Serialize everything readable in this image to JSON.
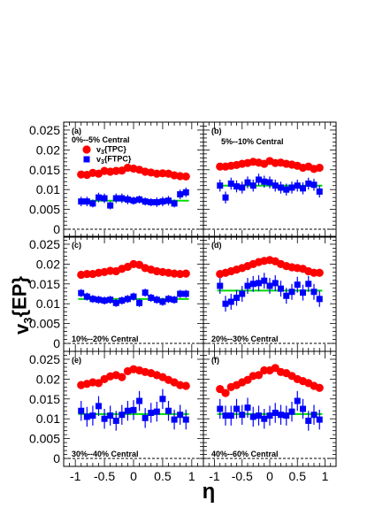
{
  "chart_data": {
    "type": "scatter",
    "ylabel": "v3{EP}",
    "xlabel": "η",
    "xlim": [
      -1.2,
      1.2
    ],
    "x_ticks": [
      "-1",
      "-0.5",
      "0",
      "0.5",
      "1"
    ],
    "rows": [
      {
        "ylim": [
          -0.002,
          0.027
        ],
        "y_ticks": [
          "0",
          "0.005",
          "0.01",
          "0.015",
          "0.02",
          "0.025"
        ]
      },
      {
        "ylim": [
          -0.002,
          0.027
        ],
        "y_ticks": [
          "0",
          "0.005",
          "0.01",
          "0.015",
          "0.02",
          "0.025"
        ]
      },
      {
        "ylim": [
          -0.002,
          0.027
        ],
        "y_ticks": [
          "0",
          "0.005",
          "0.01",
          "0.015",
          "0.02",
          "0.025"
        ]
      }
    ],
    "legend": {
      "placement": "top-left of panel (a)",
      "entries": [
        {
          "label": "v3{TPC}",
          "marker": "circle",
          "color": "#ff0000"
        },
        {
          "label": "v3{FTPC}",
          "marker": "square",
          "color": "#0000ff"
        }
      ]
    },
    "x": [
      -0.9,
      -0.8,
      -0.7,
      -0.6,
      -0.5,
      -0.4,
      -0.3,
      -0.2,
      -0.1,
      0.0,
      0.1,
      0.2,
      0.3,
      0.4,
      0.5,
      0.6,
      0.7,
      0.8,
      0.9
    ],
    "panels": [
      {
        "letter": "(a)",
        "label": "0%--5% Central",
        "row": 0,
        "col": 0,
        "tpc": [
          0.0138,
          0.0137,
          0.0142,
          0.014,
          0.0147,
          0.0145,
          0.0147,
          0.0148,
          0.0155,
          0.0153,
          0.015,
          0.0145,
          0.0143,
          0.014,
          0.0141,
          0.014,
          0.0136,
          0.0134,
          0.0133
        ],
        "ftpc": [
          0.007,
          0.007,
          0.0065,
          0.008,
          0.0078,
          0.006,
          0.0078,
          0.0078,
          0.0075,
          0.0072,
          0.0075,
          0.007,
          0.0068,
          0.0068,
          0.007,
          0.0072,
          0.0065,
          0.0088,
          0.0093
        ],
        "ftpc_err": [
          0.0012,
          0.0012,
          0.001,
          0.0012,
          0.0012,
          0.001,
          0.0012,
          0.0012,
          0.0012,
          0.001,
          0.001,
          0.001,
          0.001,
          0.0012,
          0.0012,
          0.0012,
          0.001,
          0.0012,
          0.0012
        ],
        "fit": 0.0072
      },
      {
        "letter": "(b)",
        "label": "5%--10% Central",
        "row": 0,
        "col": 1,
        "tpc": [
          0.0158,
          0.0158,
          0.016,
          0.0162,
          0.0165,
          0.0167,
          0.017,
          0.0168,
          0.0165,
          0.0172,
          0.0167,
          0.0168,
          0.0165,
          0.0163,
          0.016,
          0.0155,
          0.0158,
          0.0152,
          0.0155
        ],
        "ftpc": [
          0.011,
          0.008,
          0.0115,
          0.0108,
          0.0105,
          0.0118,
          0.011,
          0.0125,
          0.012,
          0.0118,
          0.011,
          0.0105,
          0.01,
          0.0105,
          0.011,
          0.0103,
          0.0115,
          0.0112,
          0.0095
        ],
        "ftpc_err": [
          0.0015,
          0.0015,
          0.0015,
          0.0015,
          0.0015,
          0.0015,
          0.0015,
          0.0015,
          0.0015,
          0.0015,
          0.0015,
          0.0015,
          0.0015,
          0.0015,
          0.0015,
          0.0015,
          0.0015,
          0.0015,
          0.0015
        ],
        "fit": 0.011
      },
      {
        "letter": "(c)",
        "label": "10%--20% Central",
        "row": 1,
        "col": 0,
        "tpc": [
          0.0173,
          0.0175,
          0.0175,
          0.0178,
          0.018,
          0.0183,
          0.0182,
          0.0188,
          0.0193,
          0.02,
          0.0198,
          0.019,
          0.0186,
          0.0182,
          0.018,
          0.0178,
          0.0176,
          0.0175,
          0.0176
        ],
        "ftpc": [
          0.0127,
          0.0118,
          0.0112,
          0.011,
          0.0108,
          0.011,
          0.0102,
          0.0108,
          0.0112,
          0.0118,
          0.0102,
          0.0128,
          0.0115,
          0.011,
          0.0105,
          0.0112,
          0.011,
          0.0125,
          0.0125
        ],
        "ftpc_err": [
          0.001,
          0.001,
          0.001,
          0.001,
          0.001,
          0.001,
          0.001,
          0.001,
          0.001,
          0.001,
          0.001,
          0.001,
          0.001,
          0.001,
          0.001,
          0.001,
          0.001,
          0.001,
          0.001
        ],
        "fit": 0.0112
      },
      {
        "letter": "(d)",
        "label": "20%--30% Central",
        "row": 1,
        "col": 1,
        "tpc": [
          0.0175,
          0.0178,
          0.0182,
          0.0186,
          0.019,
          0.0195,
          0.02,
          0.0205,
          0.0208,
          0.021,
          0.0207,
          0.02,
          0.0195,
          0.0192,
          0.019,
          0.0188,
          0.0182,
          0.0178,
          0.0178
        ],
        "ftpc": [
          0.0145,
          0.01,
          0.0105,
          0.0115,
          0.0125,
          0.0145,
          0.015,
          0.0152,
          0.0158,
          0.0145,
          0.0152,
          0.0138,
          0.012,
          0.013,
          0.0148,
          0.0128,
          0.015,
          0.013,
          0.0112
        ],
        "ftpc_err": [
          0.002,
          0.002,
          0.002,
          0.002,
          0.002,
          0.002,
          0.002,
          0.002,
          0.002,
          0.002,
          0.002,
          0.002,
          0.002,
          0.002,
          0.002,
          0.002,
          0.002,
          0.002,
          0.002
        ],
        "fit": 0.0133
      },
      {
        "letter": "(e)",
        "label": "30%--40% Central",
        "row": 2,
        "col": 0,
        "tpc": [
          0.0185,
          0.0188,
          0.0192,
          0.019,
          0.02,
          0.0207,
          0.021,
          0.0205,
          0.022,
          0.0225,
          0.0222,
          0.0218,
          0.0215,
          0.021,
          0.0205,
          0.0198,
          0.0192,
          0.0185,
          0.0183
        ],
        "ftpc": [
          0.012,
          0.0105,
          0.0108,
          0.0132,
          0.01,
          0.0108,
          0.0095,
          0.011,
          0.012,
          0.0122,
          0.0145,
          0.0102,
          0.0115,
          0.0118,
          0.015,
          0.012,
          0.0098,
          0.011,
          0.0098
        ],
        "ftpc_err": [
          0.0025,
          0.0025,
          0.0025,
          0.0025,
          0.0025,
          0.0025,
          0.0025,
          0.0025,
          0.0025,
          0.0025,
          0.0025,
          0.0025,
          0.0025,
          0.0025,
          0.0025,
          0.0025,
          0.0025,
          0.0025,
          0.0025
        ],
        "fit": 0.0112
      },
      {
        "letter": "(f)",
        "label": "40%--60% Central",
        "row": 2,
        "col": 1,
        "tpc": [
          0.0175,
          0.0165,
          0.018,
          0.0185,
          0.0192,
          0.0198,
          0.0208,
          0.021,
          0.0222,
          0.0222,
          0.0228,
          0.0218,
          0.0215,
          0.0208,
          0.02,
          0.0195,
          0.019,
          0.0183,
          0.0178
        ],
        "ftpc": [
          0.0125,
          0.0108,
          0.0108,
          0.0125,
          0.011,
          0.0128,
          0.0105,
          0.0108,
          0.01,
          0.0108,
          0.0115,
          0.011,
          0.0108,
          0.0118,
          0.0145,
          0.0125,
          0.0095,
          0.011,
          0.0098
        ],
        "ftpc_err": [
          0.0025,
          0.0025,
          0.0025,
          0.0025,
          0.0025,
          0.0025,
          0.0025,
          0.0025,
          0.0025,
          0.0025,
          0.0025,
          0.0025,
          0.0025,
          0.0025,
          0.0025,
          0.0025,
          0.0025,
          0.0025,
          0.0025
        ],
        "fit": 0.0112
      }
    ],
    "colors": {
      "tpc": "#ff0000",
      "ftpc": "#0000ff",
      "fit": "#00dd00",
      "zero_line": "#000000"
    }
  }
}
